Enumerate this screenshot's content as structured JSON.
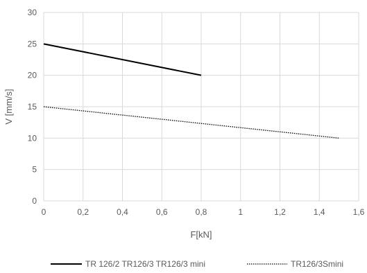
{
  "chart_data": {
    "type": "line",
    "xlabel": "F[kN]",
    "ylabel": "V [mm/s]",
    "xlim": [
      0,
      1.6
    ],
    "ylim": [
      0,
      30
    ],
    "x_ticks": [
      0,
      0.2,
      0.4,
      0.6,
      0.8,
      1.0,
      1.2,
      1.4,
      1.6
    ],
    "x_tick_labels": [
      "0",
      "0,2",
      "0,4",
      "0,6",
      "0,8",
      "1",
      "1,2",
      "1,4",
      "1,6"
    ],
    "y_ticks": [
      0,
      5,
      10,
      15,
      20,
      25,
      30
    ],
    "y_tick_labels": [
      "0",
      "5",
      "10",
      "15",
      "20",
      "25",
      "30"
    ],
    "grid": true,
    "legend_position": "bottom",
    "series": [
      {
        "name": "TR 126/2 TR126/3 TR126/3 mini",
        "x": [
          0,
          0.8
        ],
        "y": [
          25,
          20
        ],
        "color": "#000000",
        "style": "solid"
      },
      {
        "name": "TR126/3Smini",
        "x": [
          0,
          1.5
        ],
        "y": [
          15,
          10
        ],
        "color": "#000000",
        "style": "dotted"
      }
    ]
  }
}
